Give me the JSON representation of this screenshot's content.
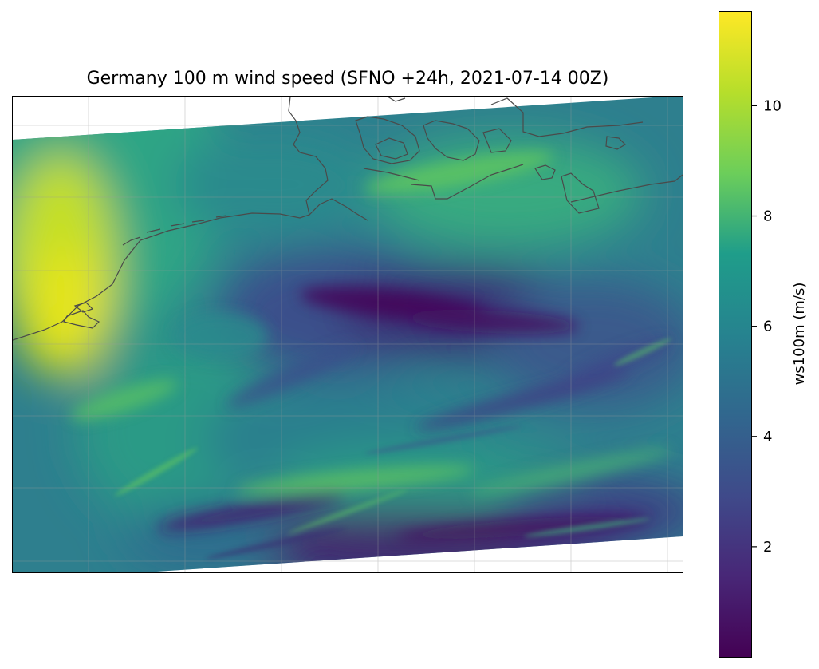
{
  "title": "Germany 100 m wind speed  (SFNO +24h, 2021-07-14 00Z)",
  "map": {
    "field": "ws100m",
    "units": "m/s",
    "colormap": "viridis",
    "gridlines": true,
    "coastlines": true
  },
  "colorbar": {
    "label": "ws100m (m/s)",
    "min": 0.0,
    "max": 11.7,
    "ticks": [
      2,
      4,
      6,
      8,
      10
    ],
    "tick_labels": [
      "2",
      "4",
      "6",
      "8",
      "10"
    ],
    "colors": [
      "#440154",
      "#482777",
      "#3f4a8a",
      "#31678e",
      "#26838f",
      "#1f9d8a",
      "#6cce5a",
      "#b6de2b",
      "#fee825"
    ]
  }
}
